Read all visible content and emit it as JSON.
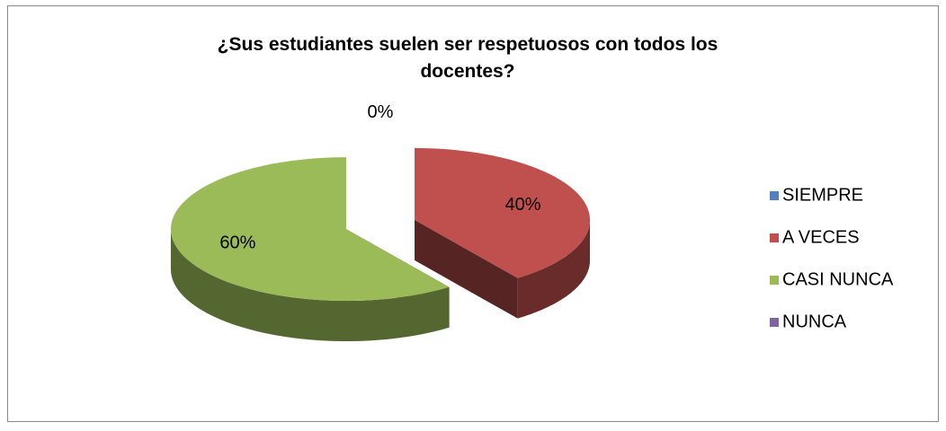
{
  "chart_data": {
    "type": "pie",
    "title": "¿Sus estudiantes  suelen ser respetuosos con todos los docentes?",
    "categories": [
      "SIEMPRE",
      "A VECES",
      "CASI NUNCA",
      "NUNCA"
    ],
    "values": [
      0,
      40,
      60,
      0
    ],
    "value_labels": [
      "0%",
      "40%",
      "60%",
      null
    ],
    "colors": [
      "#4f81bd",
      "#c0504d",
      "#9bbb59",
      "#8064a2"
    ],
    "legend": "right"
  }
}
